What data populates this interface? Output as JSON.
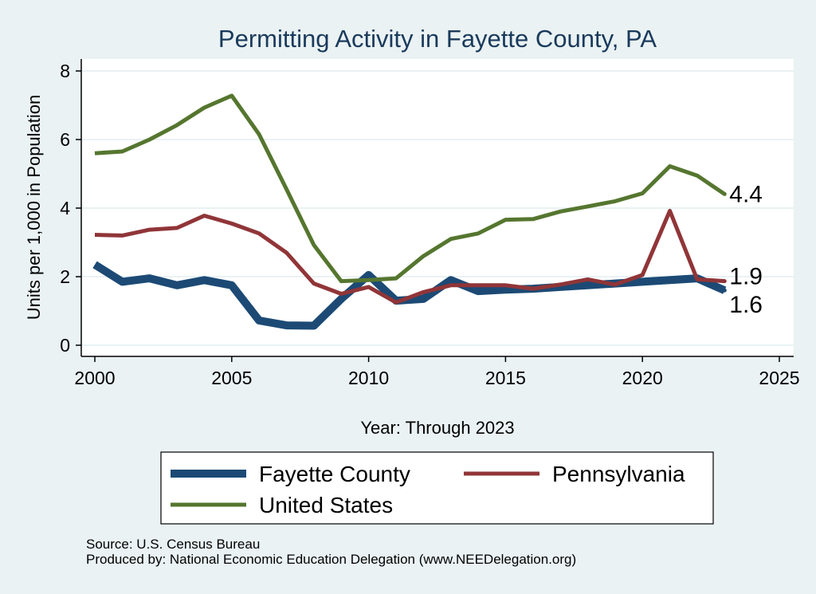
{
  "chart_data": {
    "type": "line",
    "title": "Permitting Activity in Fayette County, PA",
    "xlabel": "Year: Through 2023",
    "ylabel": "Units per 1,000 in Population",
    "xlim": [
      2000,
      2025
    ],
    "ylim": [
      0,
      8
    ],
    "x_ticks": [
      2000,
      2005,
      2010,
      2015,
      2020,
      2025
    ],
    "y_ticks": [
      0,
      2,
      4,
      6,
      8
    ],
    "grid": true,
    "legend_position": "bottom",
    "x": [
      2000,
      2001,
      2002,
      2003,
      2004,
      2005,
      2006,
      2007,
      2008,
      2009,
      2010,
      2011,
      2012,
      2013,
      2014,
      2015,
      2016,
      2017,
      2018,
      2019,
      2020,
      2021,
      2022,
      2023
    ],
    "series": [
      {
        "name": "Fayette County",
        "color": "#1c4a75",
        "values": [
          2.35,
          1.85,
          1.95,
          1.75,
          1.9,
          1.75,
          0.72,
          0.58,
          0.57,
          1.35,
          2.05,
          1.3,
          1.35,
          1.9,
          1.58,
          1.62,
          1.65,
          1.7,
          1.75,
          1.8,
          1.85,
          1.9,
          1.95,
          1.6
        ],
        "end_label": "1.6"
      },
      {
        "name": "Pennsylvania",
        "color": "#903538",
        "values": [
          3.22,
          3.2,
          3.37,
          3.42,
          3.78,
          3.55,
          3.26,
          2.7,
          1.8,
          1.5,
          1.7,
          1.25,
          1.55,
          1.75,
          1.75,
          1.75,
          1.65,
          1.77,
          1.92,
          1.77,
          2.05,
          3.92,
          1.92,
          1.87
        ],
        "end_label": "1.9"
      },
      {
        "name": "United States",
        "color": "#55762f",
        "values": [
          5.6,
          5.65,
          6.0,
          6.42,
          6.93,
          7.28,
          6.15,
          4.55,
          2.92,
          1.87,
          1.9,
          1.95,
          2.6,
          3.1,
          3.26,
          3.66,
          3.68,
          3.9,
          4.05,
          4.2,
          4.43,
          5.22,
          4.95,
          4.41
        ],
        "end_label": "4.4"
      }
    ]
  },
  "legend": {
    "items": [
      {
        "label": "Fayette County",
        "color": "#1c4a75",
        "weight": "heavy"
      },
      {
        "label": "Pennsylvania",
        "color": "#903538",
        "weight": "medium"
      },
      {
        "label": "United States",
        "color": "#55762f",
        "weight": "medium"
      }
    ]
  },
  "notes": {
    "source": "Source: U.S. Census Bureau",
    "producer": "Produced by: National Economic Education Delegation (www.NEEDelegation.org)"
  }
}
